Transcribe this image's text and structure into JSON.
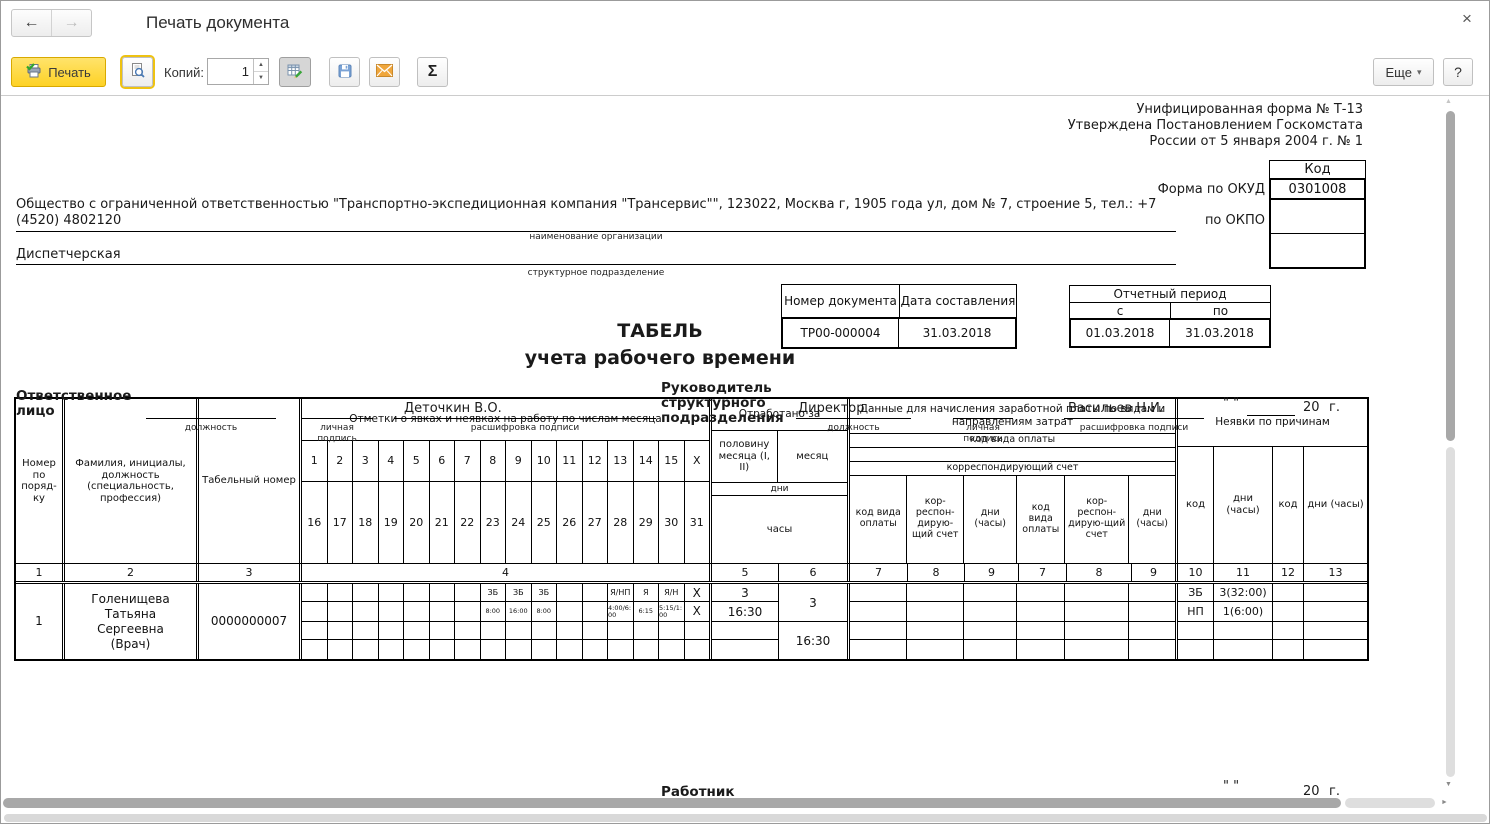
{
  "window": {
    "title": "Печать документа"
  },
  "icons": {
    "back": "←",
    "forward": "→",
    "close": "×",
    "sigma": "Σ",
    "caret_down": "▾",
    "spin_up": "▲",
    "spin_down": "▼",
    "scroll_up": "▲",
    "scroll_down": "▼",
    "scroll_right": "►"
  },
  "toolbar": {
    "print": "Печать",
    "copies_label": "Копий:",
    "copies_value": "1",
    "more": "Еще",
    "help": "?"
  },
  "form_header": {
    "note_line1": "Унифицированная форма № Т-13",
    "note_line2": "Утверждена Постановлением Госкомстата",
    "note_line3": "России от 5 января 2004 г. № 1",
    "code_header": "Код",
    "okud_label": "Форма по ОКУД",
    "okud_value": "0301008",
    "okpo_label": "по ОКПО",
    "org_name": "Общество с ограниченной ответственностью \"Транспортно-экспедиционная компания \"Трансервис\"\", 123022, Москва г, 1905 года ул, дом № 7, строение 5, тел.: +7 (4520) 4802120",
    "org_caption": "наименование организации",
    "department": "Диспетчерская",
    "department_caption": "структурное подразделение",
    "doc_number_label": "Номер документа",
    "doc_date_label": "Дата составления",
    "doc_number": "ТР00-000004",
    "doc_date": "31.03.2018",
    "period_title": "Отчетный период",
    "period_from_label": "с",
    "period_to_label": "по",
    "period_from": "01.03.2018",
    "period_to": "31.03.2018",
    "title_line1": "ТАБЕЛЬ",
    "title_line2": "учета  рабочего времени"
  },
  "table": {
    "headers": {
      "num": "Номер по поряд-ку",
      "name": "Фамилия, инициалы, должность (специальность, профессия)",
      "tab_num": "Табельный номер",
      "marks_group": "Отметки о явках и неявках на работу по числам месяца",
      "worked_group": "Отработано за",
      "worked_half": "половину месяца (I, II)",
      "worked_month": "месяц",
      "days_label": "дни",
      "hours_label": "часы",
      "pay_group": "Данные для начисления заработной платы по видам и направлениям затрат",
      "pay_code_row": "код вида оплаты",
      "corr_row": "корреспондирующий счет",
      "pay_code_col": "код вида оплаты",
      "corr_col": "кор-респон-дирую-щий счет",
      "days_hours_col": "дни (часы)",
      "absence_group": "Неявки по причинам",
      "code_col": "код"
    },
    "column_numbers": [
      "1",
      "2",
      "3",
      "4",
      "5",
      "6",
      "7",
      "8",
      "9",
      "7",
      "8",
      "9",
      "10",
      "11",
      "12",
      "13"
    ],
    "days_top": [
      "1",
      "2",
      "3",
      "4",
      "5",
      "6",
      "7",
      "8",
      "9",
      "10",
      "11",
      "12",
      "13",
      "14",
      "15",
      "X"
    ],
    "days_bottom": [
      "16",
      "17",
      "18",
      "19",
      "20",
      "21",
      "22",
      "23",
      "24",
      "25",
      "26",
      "27",
      "28",
      "29",
      "30",
      "31"
    ],
    "row": {
      "num": "1",
      "name": "Голенищева Татьяна Сергеевна (Врач)",
      "tab_number": "0000000007",
      "marks_first_half": [
        "",
        "",
        "",
        "",
        "",
        "",
        "",
        "ЗБ",
        "ЗБ",
        "ЗБ",
        "",
        "",
        "Я/НП",
        "Я",
        "Я/Н",
        "X"
      ],
      "hours_first_half": [
        "",
        "",
        "",
        "",
        "",
        "",
        "",
        "8:00",
        "16:00",
        "8:00",
        "",
        "",
        "4:00/6:00",
        "6:15",
        "5:15/1:00",
        "X"
      ],
      "marks_second_half": [
        "",
        "",
        "",
        "",
        "",
        "",
        "",
        "",
        "",
        "",
        "",
        "",
        "",
        "",
        "",
        ""
      ],
      "hours_second_half": [
        "",
        "",
        "",
        "",
        "",
        "",
        "",
        "",
        "",
        "",
        "",
        "",
        "",
        "",
        "",
        ""
      ],
      "worked_half_days": "3",
      "worked_half_hours": "16:30",
      "worked_month_days": "3",
      "worked_month_hours": "16:30",
      "absence_rows": [
        [
          "ЗБ",
          "3(32:00)",
          "",
          ""
        ],
        [
          "НП",
          "1(6:00)",
          "",
          ""
        ],
        [
          "",
          "",
          "",
          ""
        ],
        [
          "",
          "",
          "",
          ""
        ]
      ]
    }
  },
  "signatures": {
    "responsible_label": "Ответственное лицо",
    "responsible_name": "Деточкин В.О.",
    "head_label": "Руководитель структурного подразделения",
    "head_position": "Директор",
    "head_name": "Васильев Н.И.",
    "worker_label": "Работник",
    "caption_position": "должность",
    "caption_sign": "личная подпись",
    "caption_signname": "расшифровка подписи",
    "date_quotes": "\" \"",
    "year_20": "20",
    "year_g": "г."
  }
}
